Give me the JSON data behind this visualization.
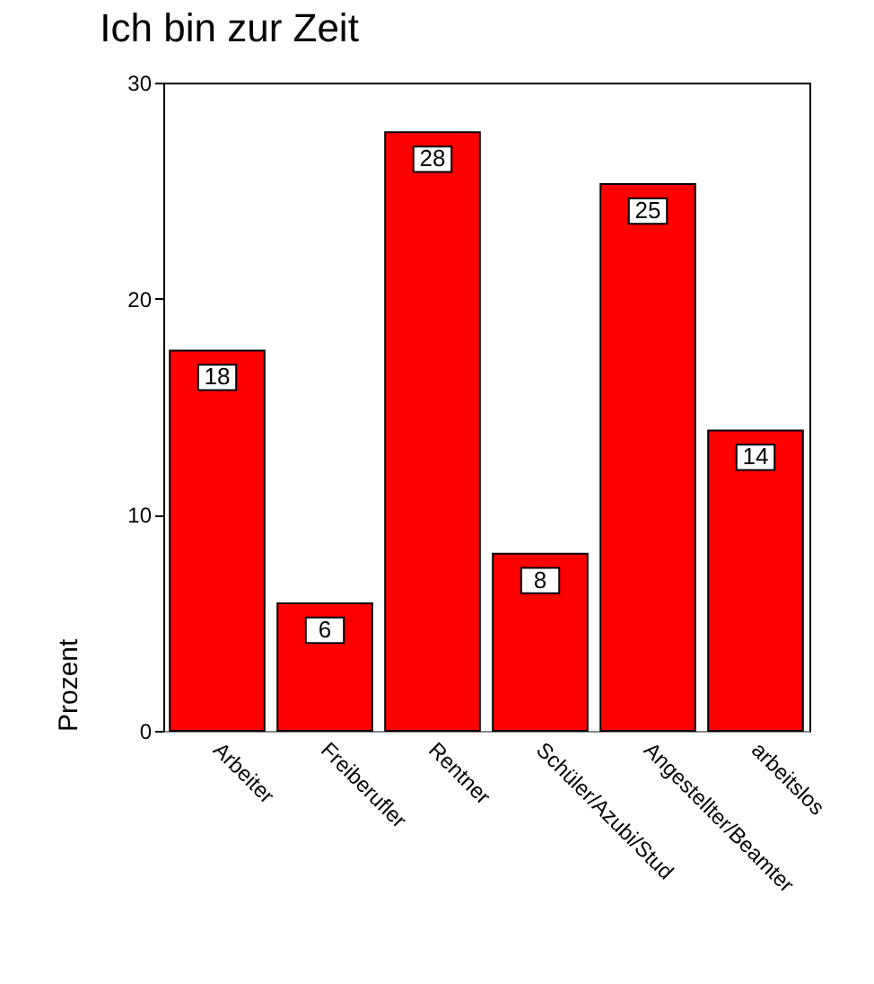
{
  "chart_data": {
    "type": "bar",
    "title": "Ich bin zur Zeit",
    "ylabel": "Prozent",
    "categories": [
      "Arbeiter",
      "Freiberufler",
      "Rentner",
      "Schüler/Azubi/Stud",
      "Angestellter/Beamter",
      "arbeitslos"
    ],
    "values": [
      17.6,
      5.9,
      27.7,
      8.2,
      25.3,
      13.9
    ],
    "value_labels": [
      "18",
      "6",
      "28",
      "8",
      "25",
      "14"
    ],
    "color": "#ff0000",
    "ylim": [
      0,
      30
    ],
    "yticks": [
      0,
      10,
      20,
      30
    ],
    "grid": false
  }
}
